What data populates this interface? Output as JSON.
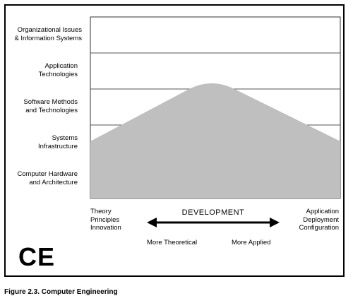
{
  "rows": [
    {
      "label": "Organizational Issues\n& Information Systems"
    },
    {
      "label": "Application\nTechnologies"
    },
    {
      "label": "Software Methods\nand Technologies"
    },
    {
      "label": "Systems\nInfrastructure"
    },
    {
      "label": "Computer Hardware\nand Architecture"
    }
  ],
  "axis": {
    "left": "Theory\nPrinciples\nInnovation",
    "center": "DEVELOPMENT",
    "right": "Application\nDeployment\nConfiguration",
    "more_theoretical": "More Theoretical",
    "more_applied": "More Applied"
  },
  "logo": "CE",
  "caption": "Figure 2.3.  Computer Engineering",
  "colors": {
    "shape": "#bfbfbf",
    "grid": "#555555",
    "border": "#000000"
  }
}
